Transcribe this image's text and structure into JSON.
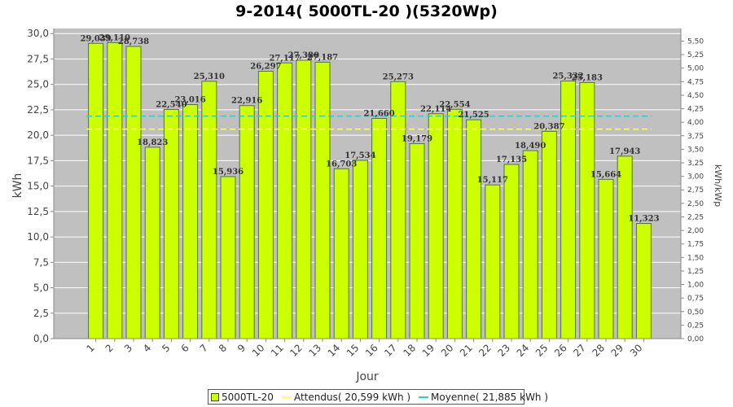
{
  "title": "9-2014( 5000TL-20 )(5320Wp)",
  "colors": {
    "bar_fill": "#ccff00",
    "bar_edge": "#4d7a1a",
    "plot_bg": "#c0c0c0",
    "grid": "#ffffff",
    "expected_line": "#ffff66",
    "average_line": "#33cccc"
  },
  "chart_data": {
    "type": "bar",
    "title": "9-2014( 5000TL-20 )(5320Wp)",
    "xlabel": "Jour",
    "ylabel": "kWh",
    "y2label": "kWh/kWp",
    "categories": [
      "1",
      "2",
      "3",
      "4",
      "5",
      "6",
      "7",
      "8",
      "9",
      "10",
      "11",
      "12",
      "13",
      "14",
      "15",
      "16",
      "17",
      "18",
      "19",
      "20",
      "21",
      "22",
      "23",
      "24",
      "25",
      "26",
      "27",
      "28",
      "29",
      "30"
    ],
    "series": [
      {
        "name": "5000TL-20",
        "values": [
          29.039,
          29.11,
          28.738,
          18.823,
          22.54,
          23.016,
          25.31,
          15.936,
          22.916,
          26.297,
          27.117,
          27.38,
          27.187,
          16.703,
          17.534,
          21.66,
          25.273,
          19.179,
          22.114,
          22.554,
          21.525,
          15.117,
          17.135,
          18.49,
          20.387,
          25.332,
          25.183,
          15.664,
          17.943,
          11.323
        ]
      }
    ],
    "data_labels": [
      "29,039",
      "29,110",
      "28,738",
      "18,823",
      "22,540",
      "23,016",
      "25,310",
      "15,936",
      "22,916",
      "26,297",
      "27,117",
      "27,380",
      "27,187",
      "16,703",
      "17,534",
      "21,660",
      "25,273",
      "19,179",
      "22,114",
      "22,554",
      "21,525",
      "15,117",
      "17,135",
      "18,490",
      "20,387",
      "25,332",
      "25,183",
      "15,664",
      "17,943",
      "11,323"
    ],
    "reference_lines": [
      {
        "name": "Attendus",
        "value": 20.599,
        "label": "Attendus( 20,599 kWh )"
      },
      {
        "name": "Moyenne",
        "value": 21.885,
        "label": "Moyenne( 21,885 kWh )"
      }
    ],
    "ylim": [
      0,
      30.5
    ],
    "yticks": [
      0,
      2.5,
      5,
      7.5,
      10,
      12.5,
      15,
      17.5,
      20,
      22.5,
      25,
      27.5,
      30
    ],
    "ytick_labels": [
      "0,0",
      "2,5",
      "5,0",
      "7,5",
      "10,0",
      "12,5",
      "15,0",
      "17,5",
      "20,0",
      "22,5",
      "25,0",
      "27,5",
      "30,0"
    ],
    "y2lim": [
      0,
      5.733
    ],
    "y2ticks": [
      0,
      0.25,
      0.5,
      0.75,
      1,
      1.25,
      1.5,
      1.75,
      2,
      2.25,
      2.5,
      2.75,
      3,
      3.25,
      3.5,
      3.75,
      4,
      4.25,
      4.5,
      4.75,
      5,
      5.25,
      5.5
    ],
    "y2tick_labels": [
      "0,00",
      "0,25",
      "0,50",
      "0,75",
      "1,00",
      "1,25",
      "1,50",
      "1,75",
      "2,00",
      "2,25",
      "2,50",
      "2,75",
      "3,00",
      "3,25",
      "3,50",
      "3,75",
      "4,00",
      "4,25",
      "4,50",
      "4,75",
      "5,00",
      "5,25",
      "5,50"
    ],
    "grid": true,
    "legend_position": "bottom"
  },
  "legend": {
    "items": [
      {
        "label": "5000TL-20",
        "kind": "box"
      },
      {
        "label": "Attendus( 20,599 kWh )",
        "kind": "line-expected"
      },
      {
        "label": "Moyenne( 21,885 kWh )",
        "kind": "line-average"
      }
    ]
  }
}
